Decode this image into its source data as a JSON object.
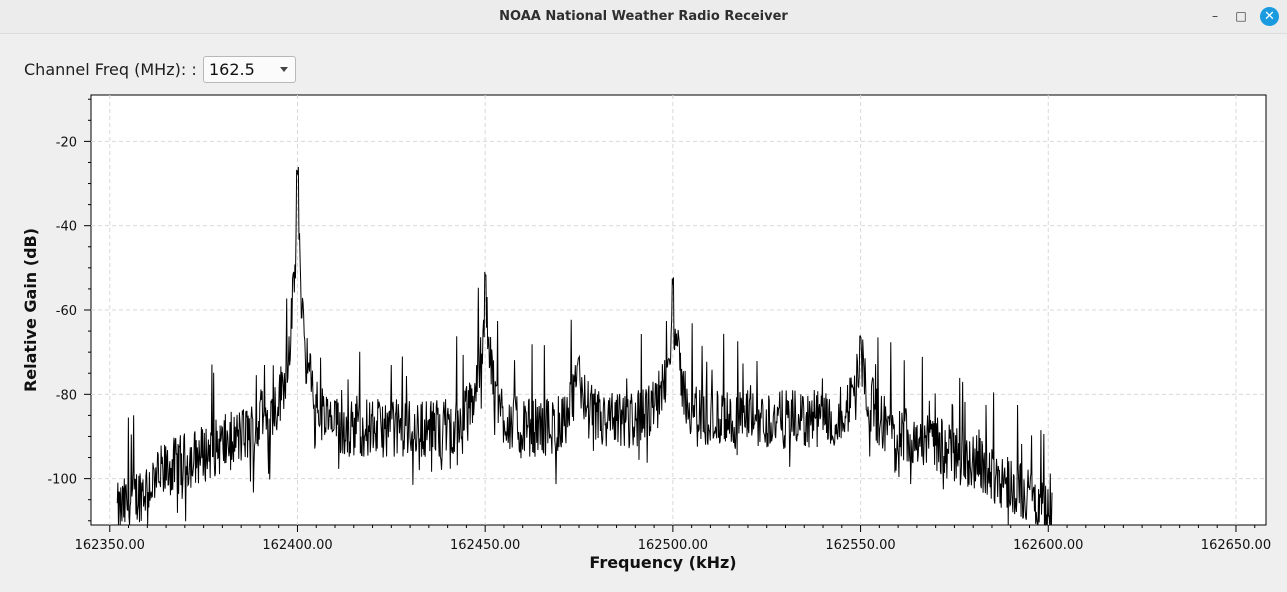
{
  "window": {
    "title": "NOAA National Weather Radio Receiver",
    "minimize_glyph": "–",
    "maximize_glyph": "□",
    "close_glyph": "✕"
  },
  "controls": {
    "channel_label": "Channel Freq (MHz): :",
    "channel_value": "162.5"
  },
  "colors": {
    "trace": "#000000",
    "grid": "#d9d9d9",
    "accent": "#1a9be0"
  },
  "chart_data": {
    "type": "line",
    "xlabel": "Frequency (kHz)",
    "ylabel": "Relative Gain (dB)",
    "xlim": [
      162345,
      162658
    ],
    "ylim": [
      -111,
      -9
    ],
    "x_ticks": [
      "162350.00",
      "162400.00",
      "162450.00",
      "162500.00",
      "162550.00",
      "162600.00",
      "162650.00"
    ],
    "y_ticks": [
      "-20",
      "-40",
      "-60",
      "-80",
      "-100"
    ],
    "grid": true,
    "trace_range_khz": [
      162352,
      162601
    ],
    "series": [
      {
        "description": "noisy FFT spectrum (noise floor and carrier peaks)",
        "floor_points": [
          [
            162352,
            -108
          ],
          [
            162365,
            -98
          ],
          [
            162380,
            -92
          ],
          [
            162395,
            -86
          ],
          [
            162410,
            -88
          ],
          [
            162430,
            -88
          ],
          [
            162450,
            -88
          ],
          [
            162470,
            -88
          ],
          [
            162490,
            -86
          ],
          [
            162510,
            -86
          ],
          [
            162530,
            -86
          ],
          [
            162550,
            -86
          ],
          [
            162565,
            -90
          ],
          [
            162580,
            -96
          ],
          [
            162595,
            -104
          ],
          [
            162601,
            -110
          ]
        ],
        "peaks": [
          {
            "x": 162400,
            "y": -28
          },
          {
            "x": 162450,
            "y": -52
          },
          {
            "x": 162475,
            "y": -73
          },
          {
            "x": 162500,
            "y": -54
          },
          {
            "x": 162550,
            "y": -67
          }
        ]
      }
    ]
  }
}
